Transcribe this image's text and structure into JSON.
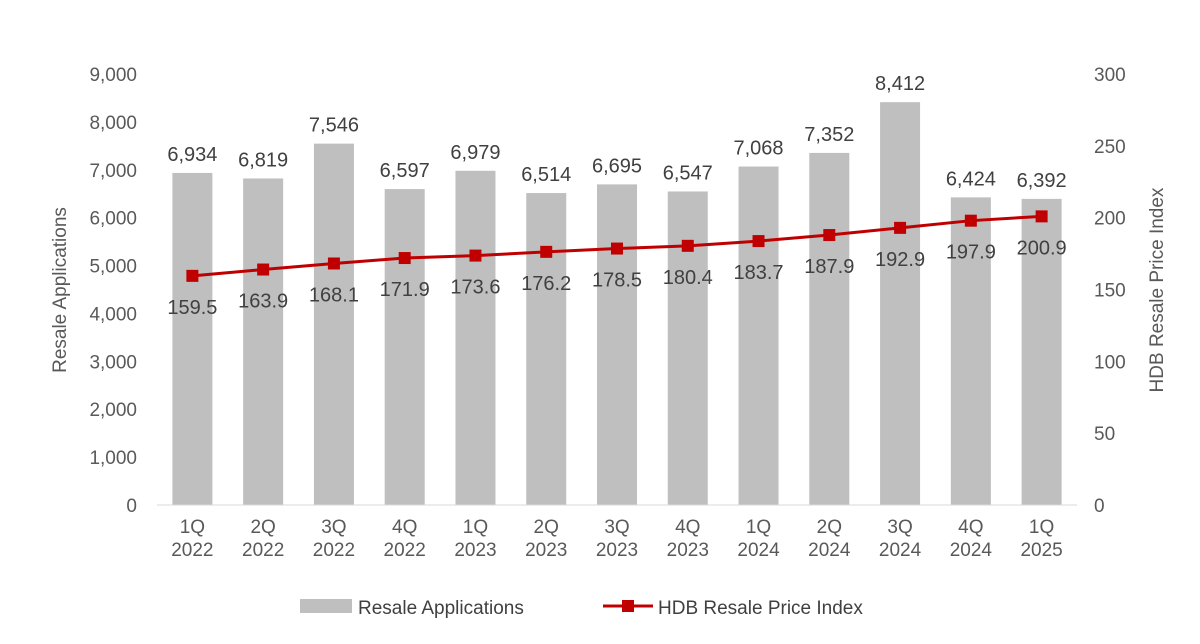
{
  "chart_data": {
    "type": "bar",
    "categories": [
      "1Q 2022",
      "2Q 2022",
      "3Q 2022",
      "4Q 2022",
      "1Q 2023",
      "2Q 2023",
      "3Q 2023",
      "4Q 2023",
      "1Q 2024",
      "2Q 2024",
      "3Q 2024",
      "4Q 2024",
      "1Q 2025"
    ],
    "category_lines": [
      [
        "1Q",
        "2022"
      ],
      [
        "2Q",
        "2022"
      ],
      [
        "3Q",
        "2022"
      ],
      [
        "4Q",
        "2022"
      ],
      [
        "1Q",
        "2023"
      ],
      [
        "2Q",
        "2023"
      ],
      [
        "3Q",
        "2023"
      ],
      [
        "4Q",
        "2023"
      ],
      [
        "1Q",
        "2024"
      ],
      [
        "2Q",
        "2024"
      ],
      [
        "3Q",
        "2024"
      ],
      [
        "4Q",
        "2024"
      ],
      [
        "1Q",
        "2025"
      ]
    ],
    "series": [
      {
        "name": "Resale Applications",
        "type": "bar",
        "axis": "left",
        "color": "#bfbfbf",
        "values": [
          6934,
          6819,
          7546,
          6597,
          6979,
          6514,
          6695,
          6547,
          7068,
          7352,
          8412,
          6424,
          6392
        ],
        "labels": [
          "6,934",
          "6,819",
          "7,546",
          "6,597",
          "6,979",
          "6,514",
          "6,695",
          "6,547",
          "7,068",
          "7,352",
          "8,412",
          "6,424",
          "6,392"
        ]
      },
      {
        "name": "HDB Resale Price Index",
        "type": "line",
        "axis": "right",
        "color": "#c00000",
        "marker": "square",
        "values": [
          159.5,
          163.9,
          168.1,
          171.9,
          173.6,
          176.2,
          178.5,
          180.4,
          183.7,
          187.9,
          192.9,
          197.9,
          200.9
        ],
        "labels": [
          "159.5",
          "163.9",
          "168.1",
          "171.9",
          "173.6",
          "176.2",
          "178.5",
          "180.4",
          "183.7",
          "187.9",
          "192.9",
          "197.9",
          "200.9"
        ]
      }
    ],
    "ylabel": "Resale Applications",
    "y2label": "HDB Resale Price Index",
    "ylim": [
      0,
      9000
    ],
    "y2lim": [
      0,
      300
    ],
    "yticks": [
      "0",
      "1,000",
      "2,000",
      "3,000",
      "4,000",
      "5,000",
      "6,000",
      "7,000",
      "8,000",
      "9,000"
    ],
    "y2ticks": [
      "0",
      "50",
      "100",
      "150",
      "200",
      "250",
      "300"
    ],
    "grid": false,
    "legend_position": "bottom"
  }
}
